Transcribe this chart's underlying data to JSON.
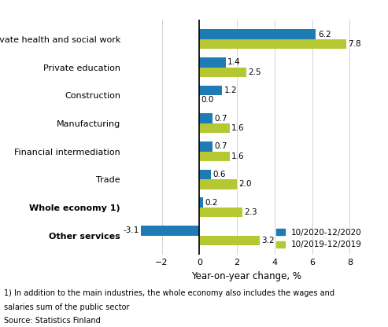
{
  "categories": [
    "Private health and social work",
    "Private education",
    "Construction",
    "Manufacturing",
    "Financial intermediation",
    "Trade",
    "Whole economy 1)",
    "Other services"
  ],
  "series_2020": [
    6.2,
    1.4,
    1.2,
    0.7,
    0.7,
    0.6,
    0.2,
    -3.1
  ],
  "series_2019": [
    7.8,
    2.5,
    0.0,
    1.6,
    1.6,
    2.0,
    2.3,
    3.2
  ],
  "color_2020": "#1f7bb5",
  "color_2019": "#b5c832",
  "legend_2020": "10/2020-12/2020",
  "legend_2019": "10/2019-12/2019",
  "xlabel": "Year-on-year change, %",
  "xlim": [
    -4,
    9
  ],
  "xticks": [
    -2,
    0,
    2,
    4,
    6,
    8
  ],
  "footnote1": "1) In addition to the main industries, the whole economy also includes the wages and",
  "footnote2": "salaries sum of the public sector",
  "footnote3": "Source: Statistics Finland",
  "bar_height": 0.35,
  "bold_categories": [
    "Whole economy 1)",
    "Other services"
  ]
}
